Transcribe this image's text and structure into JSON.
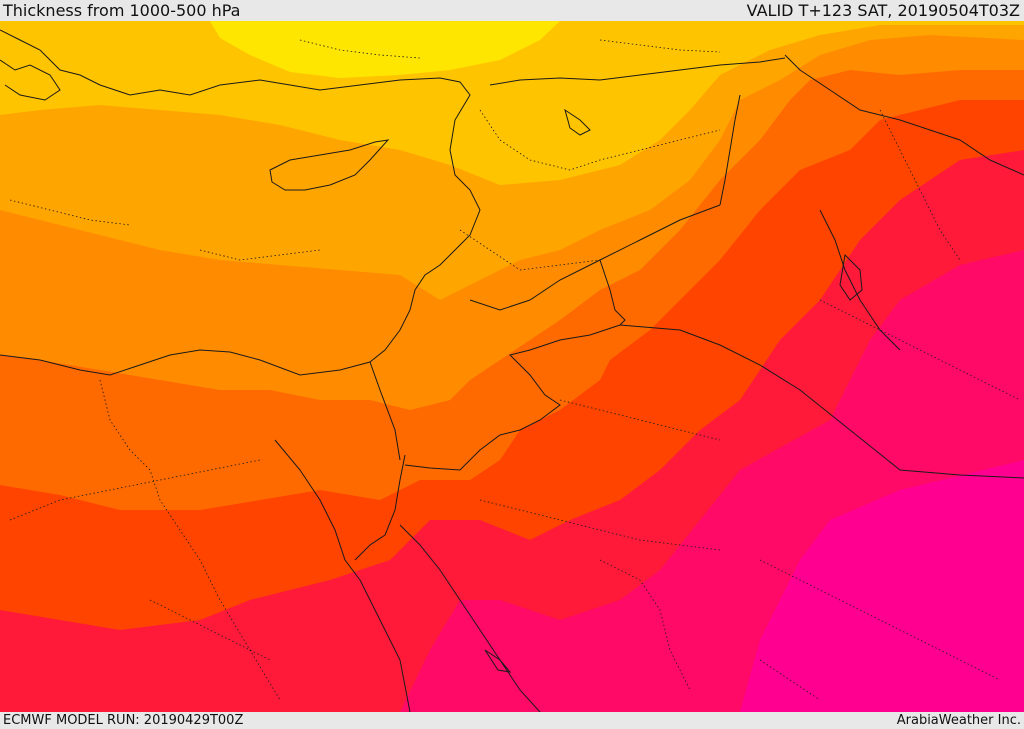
{
  "header": {
    "title": "Thickness from 1000-500 hPa",
    "valid": "VALID T+123 SAT, 20190504T03Z"
  },
  "footer": {
    "model_run": "ECMWF MODEL RUN: 20190429T00Z",
    "credit": "ArabiaWeather Inc."
  },
  "palette": {
    "band1": "#ffe600",
    "band2": "#ffc400",
    "band3": "#ffa500",
    "band4": "#ff8c00",
    "band5": "#ff6a00",
    "band6": "#ff4400",
    "band7": "#ff1a3a",
    "band8": "#ff0a66",
    "band9": "#ff0090",
    "border_color": "#1a1a1a"
  }
}
